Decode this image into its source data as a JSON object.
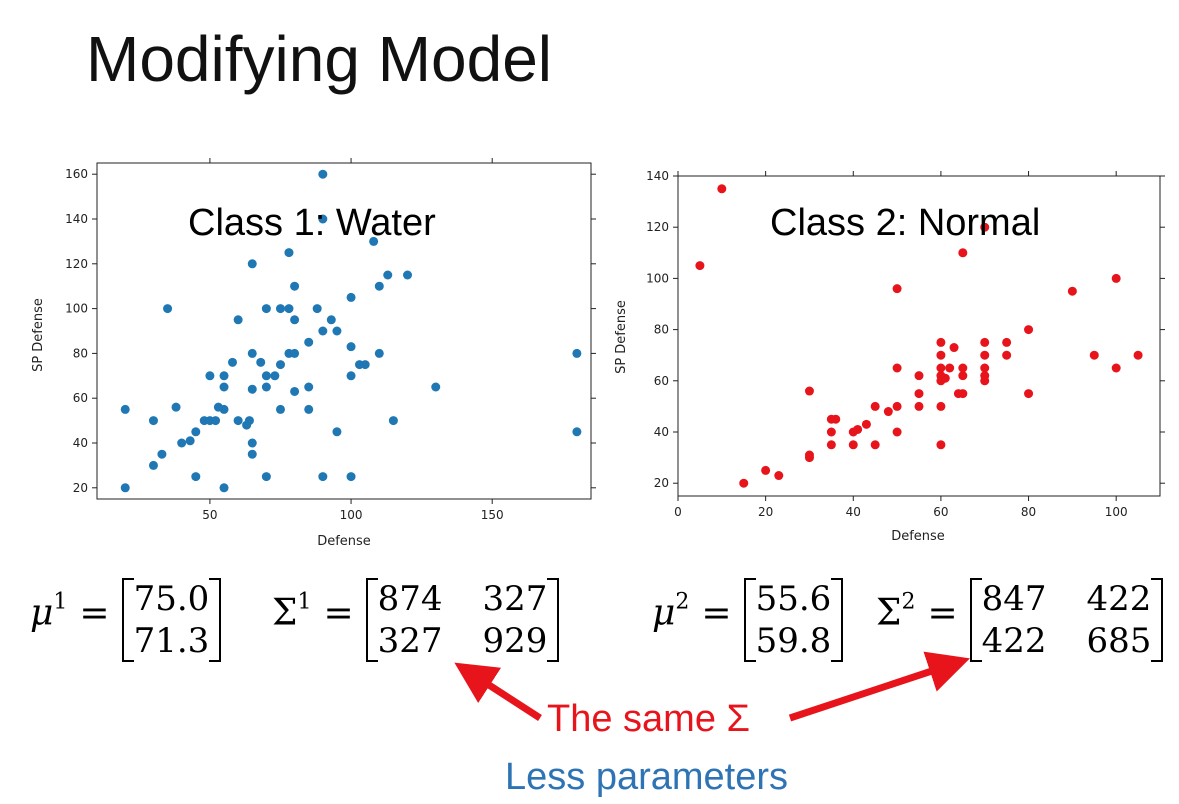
{
  "title": "Modifying Model",
  "charts": [
    {
      "type": "scatter",
      "class_label": "Class 1: Water",
      "xlabel": "Defense",
      "ylabel": "SP Defense",
      "xlim": [
        10,
        185
      ],
      "ylim": [
        15,
        165
      ],
      "xticks": [
        50,
        100,
        150
      ],
      "yticks": [
        20,
        40,
        60,
        80,
        100,
        120,
        140,
        160
      ],
      "color": "#1f77b4",
      "points": [
        [
          20,
          55
        ],
        [
          20,
          20
        ],
        [
          30,
          50
        ],
        [
          30,
          30
        ],
        [
          33,
          35
        ],
        [
          35,
          100
        ],
        [
          38,
          56
        ],
        [
          40,
          40
        ],
        [
          43,
          41
        ],
        [
          45,
          45
        ],
        [
          45,
          25
        ],
        [
          48,
          50
        ],
        [
          50,
          50
        ],
        [
          50,
          70
        ],
        [
          52,
          50
        ],
        [
          53,
          56
        ],
        [
          55,
          55
        ],
        [
          55,
          70
        ],
        [
          55,
          65
        ],
        [
          55,
          20
        ],
        [
          58,
          76
        ],
        [
          60,
          95
        ],
        [
          60,
          50
        ],
        [
          63,
          48
        ],
        [
          64,
          50
        ],
        [
          65,
          40
        ],
        [
          65,
          35
        ],
        [
          65,
          120
        ],
        [
          65,
          80
        ],
        [
          65,
          64
        ],
        [
          68,
          76
        ],
        [
          70,
          100
        ],
        [
          70,
          65
        ],
        [
          70,
          70
        ],
        [
          70,
          25
        ],
        [
          73,
          70
        ],
        [
          75,
          75
        ],
        [
          75,
          55
        ],
        [
          75,
          100
        ],
        [
          78,
          100
        ],
        [
          78,
          80
        ],
        [
          78,
          125
        ],
        [
          80,
          110
        ],
        [
          80,
          95
        ],
        [
          80,
          80
        ],
        [
          80,
          63
        ],
        [
          85,
          85
        ],
        [
          85,
          55
        ],
        [
          85,
          65
        ],
        [
          88,
          100
        ],
        [
          90,
          90
        ],
        [
          90,
          25
        ],
        [
          90,
          160
        ],
        [
          90,
          140
        ],
        [
          93,
          95
        ],
        [
          95,
          90
        ],
        [
          95,
          45
        ],
        [
          100,
          105
        ],
        [
          100,
          83
        ],
        [
          100,
          70
        ],
        [
          100,
          25
        ],
        [
          103,
          75
        ],
        [
          105,
          75
        ],
        [
          108,
          130
        ],
        [
          110,
          80
        ],
        [
          110,
          110
        ],
        [
          113,
          115
        ],
        [
          115,
          50
        ],
        [
          120,
          115
        ],
        [
          130,
          65
        ],
        [
          180,
          80
        ],
        [
          180,
          45
        ]
      ]
    },
    {
      "type": "scatter",
      "class_label": "Class 2: Normal",
      "xlabel": "Defense",
      "ylabel": "SP Defense",
      "xlim": [
        0,
        110
      ],
      "ylim": [
        15,
        140
      ],
      "xticks": [
        0,
        20,
        40,
        60,
        80,
        100
      ],
      "yticks": [
        20,
        40,
        60,
        80,
        100,
        120,
        140
      ],
      "color": "#e8141c",
      "points": [
        [
          5,
          105
        ],
        [
          10,
          135
        ],
        [
          15,
          20
        ],
        [
          20,
          25
        ],
        [
          23,
          23
        ],
        [
          30,
          30
        ],
        [
          30,
          31
        ],
        [
          30,
          56
        ],
        [
          35,
          45
        ],
        [
          35,
          40
        ],
        [
          35,
          35
        ],
        [
          36,
          45
        ],
        [
          40,
          40
        ],
        [
          40,
          35
        ],
        [
          41,
          41
        ],
        [
          43,
          43
        ],
        [
          45,
          50
        ],
        [
          45,
          35
        ],
        [
          48,
          48
        ],
        [
          50,
          50
        ],
        [
          50,
          65
        ],
        [
          50,
          96
        ],
        [
          50,
          40
        ],
        [
          55,
          55
        ],
        [
          55,
          50
        ],
        [
          55,
          62
        ],
        [
          60,
          75
        ],
        [
          60,
          70
        ],
        [
          60,
          65
        ],
        [
          60,
          62
        ],
        [
          60,
          60
        ],
        [
          60,
          50
        ],
        [
          60,
          35
        ],
        [
          61,
          61
        ],
        [
          62,
          65
        ],
        [
          63,
          73
        ],
        [
          64,
          55
        ],
        [
          65,
          65
        ],
        [
          65,
          62
        ],
        [
          65,
          55
        ],
        [
          65,
          110
        ],
        [
          70,
          75
        ],
        [
          70,
          70
        ],
        [
          70,
          65
        ],
        [
          70,
          62
        ],
        [
          70,
          60
        ],
        [
          70,
          120
        ],
        [
          75,
          75
        ],
        [
          75,
          70
        ],
        [
          80,
          80
        ],
        [
          80,
          55
        ],
        [
          90,
          95
        ],
        [
          95,
          70
        ],
        [
          100,
          100
        ],
        [
          100,
          65
        ],
        [
          105,
          70
        ]
      ]
    }
  ],
  "formulas": {
    "mu1": {
      "symbol": "μ",
      "sup": "1",
      "values": [
        "75.0",
        "71.3"
      ]
    },
    "sigma1": {
      "symbol": "Σ",
      "sup": "1",
      "rows": [
        [
          "874",
          "327"
        ],
        [
          "327",
          "929"
        ]
      ]
    },
    "mu2": {
      "symbol": "μ",
      "sup": "2",
      "values": [
        "55.6",
        "59.8"
      ]
    },
    "sigma2": {
      "symbol": "Σ",
      "sup": "2",
      "rows": [
        [
          "847",
          "422"
        ],
        [
          "422",
          "685"
        ]
      ]
    }
  },
  "notes": {
    "same_sigma": "The same Σ",
    "less_params": "Less parameters"
  },
  "colors": {
    "arrow": "#e8141c",
    "note_blue": "#2e74b5"
  }
}
